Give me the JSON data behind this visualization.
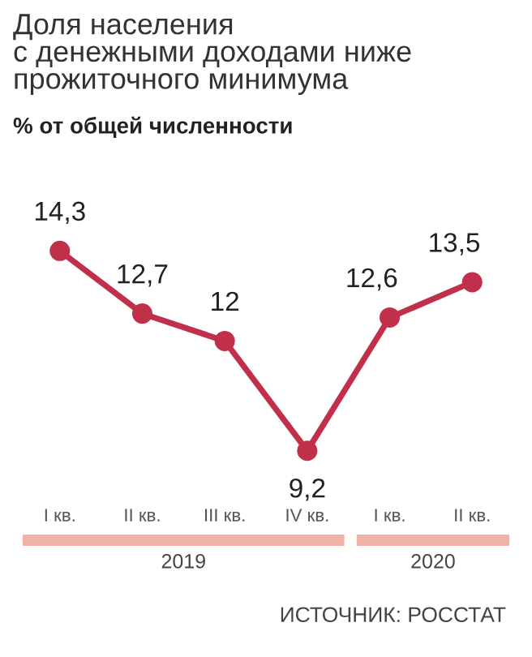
{
  "chart_data": {
    "type": "line",
    "title": "Доля населения\nс денежными доходами ниже\nпрожиточного минимума",
    "subtitle": "% от общей численности",
    "categories": [
      "I кв.",
      "II кв.",
      "III кв.",
      "IV кв.",
      "I кв.",
      "II кв."
    ],
    "series": [
      {
        "color": "#c1304a",
        "values": [
          14.3,
          12.7,
          12,
          9.2,
          12.6,
          13.5
        ],
        "value_labels": [
          "14,3",
          "12,7",
          "12",
          "9,2",
          "12,6",
          "13,5"
        ]
      }
    ],
    "marker": "circle",
    "line_style": "solid",
    "grid": false,
    "legend": false,
    "annotations": [
      "2019",
      "2020",
      "ИСТОЧНИК: РОССТАТ"
    ]
  }
}
